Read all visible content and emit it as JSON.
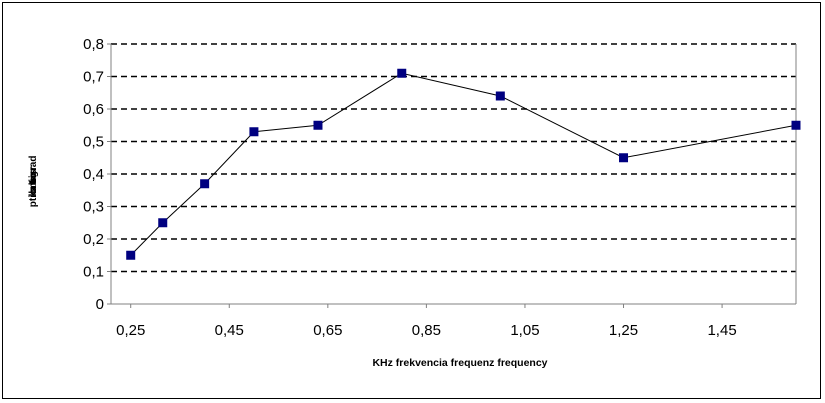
{
  "chart_data": {
    "type": "line",
    "title": "",
    "xlabel": "KHz frekvencia  frequenz  frequency",
    "ylabel_lines": [
      "v",
      "f",
      "o",
      "e",
      "ptionsgrad",
      "llabo r",
      "c",
      "o t is",
      "c"
    ],
    "x": [
      0.25,
      0.315,
      0.4,
      0.5,
      0.63,
      0.8,
      1.0,
      1.25,
      1.6
    ],
    "series": [
      {
        "name": "",
        "values": [
          0.15,
          0.25,
          0.37,
          0.53,
          0.55,
          0.71,
          0.64,
          0.45,
          0.55
        ],
        "color": "#000080",
        "line_color": "#000000"
      }
    ],
    "xlim": [
      0.21,
      1.6
    ],
    "ylim": [
      0,
      0.8
    ],
    "x_ticks": [
      0.25,
      0.45,
      0.65,
      0.85,
      1.05,
      1.25,
      1.45
    ],
    "x_tick_labels": [
      "0,25",
      "0,45",
      "0,65",
      "0,85",
      "1,05",
      "1,25",
      "1,45"
    ],
    "y_ticks": [
      0,
      0.1,
      0.2,
      0.3,
      0.4,
      0.5,
      0.6,
      0.7,
      0.8
    ],
    "y_tick_labels": [
      "0",
      "0,1",
      "0,2",
      "0,3",
      "0,4",
      "0,5",
      "0,6",
      "0,7",
      "0,8"
    ],
    "grid": "horizontal dashed",
    "legend": "none"
  }
}
